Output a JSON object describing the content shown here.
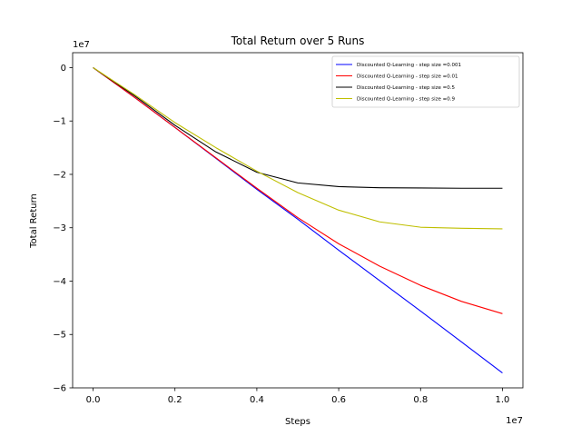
{
  "chart_data": {
    "type": "line",
    "title": "Total Return over 5 Runs",
    "xlabel": "Steps",
    "ylabel": "Total Return",
    "x_offset_label": "1e7",
    "y_offset_label": "1e7",
    "xlim": [
      -0.05,
      1.05
    ],
    "ylim": [
      -6.0,
      0.28
    ],
    "x_ticks": [
      0.0,
      0.2,
      0.4,
      0.6,
      0.8,
      1.0
    ],
    "x_tick_labels": [
      "0.0",
      "0.2",
      "0.4",
      "0.6",
      "0.8",
      "1.0"
    ],
    "y_ticks": [
      0,
      -1,
      -2,
      -3,
      -4,
      -5,
      -6
    ],
    "y_tick_labels": [
      "0",
      "−1",
      "−2",
      "−3",
      "−4",
      "−5",
      "−6"
    ],
    "grid": false,
    "legend_position": "top-right",
    "series": [
      {
        "name": "Discounted Q-Learning - step size =0.001",
        "color": "#0000ff",
        "x": [
          0.0,
          0.1,
          0.2,
          0.3,
          0.4,
          0.5,
          0.6,
          0.7,
          0.8,
          0.9,
          1.0
        ],
        "y": [
          0.0,
          -0.55,
          -1.12,
          -1.7,
          -2.28,
          -2.84,
          -3.42,
          -3.99,
          -4.56,
          -5.14,
          -5.72
        ]
      },
      {
        "name": "Discounted Q-Learning - step size =0.01",
        "color": "#ff0000",
        "x": [
          0.0,
          0.1,
          0.2,
          0.3,
          0.4,
          0.5,
          0.6,
          0.7,
          0.8,
          0.9,
          1.0
        ],
        "y": [
          0.0,
          -0.55,
          -1.12,
          -1.69,
          -2.26,
          -2.81,
          -3.3,
          -3.72,
          -4.08,
          -4.38,
          -4.61
        ]
      },
      {
        "name": "Discounted Q-Learning - step size =0.5",
        "color": "#000000",
        "x": [
          0.0,
          0.1,
          0.2,
          0.3,
          0.4,
          0.5,
          0.6,
          0.7,
          0.8,
          0.9,
          1.0
        ],
        "y": [
          0.0,
          -0.52,
          -1.08,
          -1.58,
          -1.96,
          -2.16,
          -2.23,
          -2.25,
          -2.255,
          -2.26,
          -2.26
        ]
      },
      {
        "name": "Discounted Q-Learning - step size =0.9",
        "color": "#bfbf00",
        "x": [
          0.0,
          0.1,
          0.2,
          0.3,
          0.4,
          0.5,
          0.6,
          0.7,
          0.8,
          0.9,
          1.0
        ],
        "y": [
          0.0,
          -0.5,
          -1.03,
          -1.5,
          -1.94,
          -2.34,
          -2.67,
          -2.89,
          -2.99,
          -3.01,
          -3.02
        ]
      }
    ]
  }
}
